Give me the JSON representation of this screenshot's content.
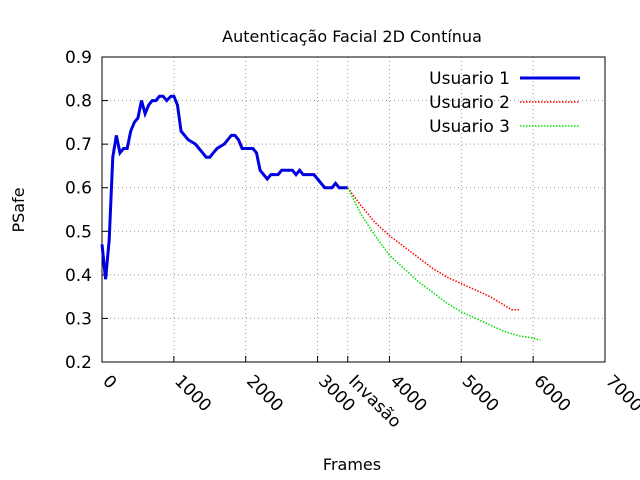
{
  "chart_data": {
    "type": "line",
    "title": "Autenticação Facial 2D Contínua",
    "x_label": "Frames",
    "y_label": "PSafe",
    "xlim": [
      0,
      7000
    ],
    "ylim": [
      0.2,
      0.9
    ],
    "xticks": [
      0,
      1000,
      2000,
      3000,
      {
        "value": 3420,
        "label": "Invasão"
      },
      4000,
      5000,
      6000,
      7000
    ],
    "yticks": [
      0.2,
      0.3,
      0.4,
      0.5,
      0.6,
      0.7,
      0.8,
      0.9
    ],
    "grid": true,
    "legend": "top-right",
    "series": [
      {
        "name": "Usuario 1",
        "color": "#0000e0",
        "style": "solid",
        "x": [
          0,
          50,
          100,
          150,
          200,
          250,
          300,
          350,
          400,
          450,
          500,
          550,
          600,
          650,
          700,
          750,
          800,
          850,
          900,
          960,
          1000,
          1050,
          1100,
          1150,
          1200,
          1300,
          1350,
          1400,
          1450,
          1500,
          1550,
          1600,
          1700,
          1750,
          1800,
          1850,
          1900,
          1950,
          2100,
          2150,
          2200,
          2300,
          2350,
          2450,
          2500,
          2650,
          2700,
          2750,
          2800,
          2950,
          3000,
          3100,
          3200,
          3250,
          3300,
          3420
        ],
        "values": [
          0.47,
          0.39,
          0.48,
          0.67,
          0.72,
          0.68,
          0.69,
          0.69,
          0.73,
          0.75,
          0.76,
          0.8,
          0.77,
          0.79,
          0.8,
          0.8,
          0.81,
          0.81,
          0.8,
          0.81,
          0.81,
          0.79,
          0.73,
          0.72,
          0.71,
          0.7,
          0.69,
          0.68,
          0.67,
          0.67,
          0.68,
          0.69,
          0.7,
          0.71,
          0.72,
          0.72,
          0.71,
          0.69,
          0.69,
          0.68,
          0.64,
          0.62,
          0.63,
          0.63,
          0.64,
          0.64,
          0.63,
          0.64,
          0.63,
          0.63,
          0.62,
          0.6,
          0.6,
          0.61,
          0.6,
          0.6
        ]
      },
      {
        "name": "Usuario 2",
        "color": "#ff0000",
        "style": "dotted",
        "x": [
          3420,
          3600,
          3800,
          4000,
          4200,
          4400,
          4600,
          4800,
          5000,
          5200,
          5400,
          5600,
          5700,
          5820
        ],
        "values": [
          0.6,
          0.56,
          0.52,
          0.49,
          0.465,
          0.44,
          0.415,
          0.395,
          0.38,
          0.365,
          0.35,
          0.33,
          0.32,
          0.32
        ]
      },
      {
        "name": "Usuario 3",
        "color": "#00e000",
        "style": "dotted",
        "x": [
          3420,
          3600,
          3800,
          4000,
          4200,
          4400,
          4600,
          4800,
          5000,
          5200,
          5400,
          5600,
          5800,
          6000,
          6100
        ],
        "values": [
          0.6,
          0.54,
          0.49,
          0.445,
          0.415,
          0.385,
          0.36,
          0.335,
          0.315,
          0.3,
          0.285,
          0.27,
          0.26,
          0.255,
          0.25
        ]
      }
    ]
  }
}
